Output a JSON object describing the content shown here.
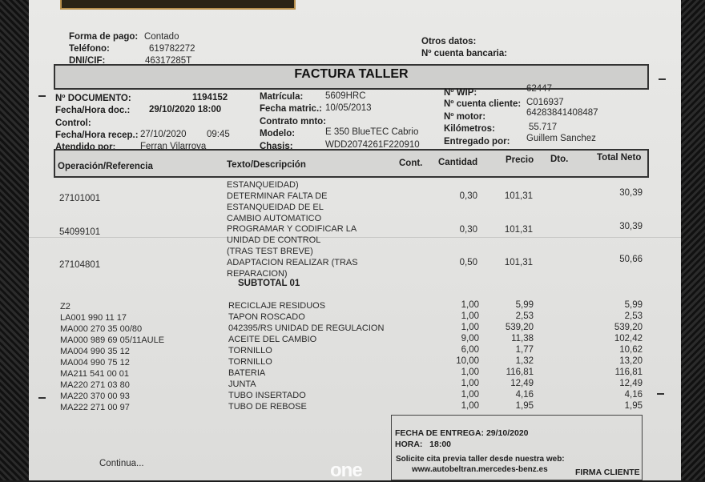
{
  "client": {
    "forma_pago_label": "Forma de pago:",
    "forma_pago": "Contado",
    "telefono_label": "Teléfono:",
    "telefono": "619782272",
    "dni_label": "DNI/CIF:",
    "dni": "46317285T",
    "otros_label": "Otros datos:",
    "cuenta_bancaria_label": "Nº cuenta bancaria:"
  },
  "title": "FACTURA TALLER",
  "doc": {
    "documento_label": "Nº DOCUMENTO:",
    "documento": "1194152",
    "fecha_doc_label": "Fecha/Hora doc.:",
    "fecha_doc": "29/10/2020 18:00",
    "control_label": "Control:",
    "recep_label": "Fecha/Hora recep.:",
    "recep_fecha": "27/10/2020",
    "recep_hora": "09:45",
    "atendido_label": "Atendido por:",
    "atendido": "Ferran Vilarroya"
  },
  "vehicle": {
    "matricula_label": "Matrícula:",
    "matricula": "5609HRC",
    "fecha_matric_label": "Fecha matric.:",
    "fecha_matric": "10/05/2013",
    "contrato_label": "Contrato mnto:",
    "modelo_label": "Modelo:",
    "modelo": "E 350 BlueTEC Cabrio",
    "chasis_label": "Chasis:",
    "chasis": "WDD2074261F220910"
  },
  "work": {
    "wip_label": "Nº WIP:",
    "wip": "62447",
    "cuenta_label": "Nº cuenta cliente:",
    "cuenta": "C016937",
    "motor_label": "Nº motor:",
    "motor": "64283841408487",
    "km_label": "Kilómetros:",
    "km": "55.717",
    "entregado_label": "Entregado por:",
    "entregado": "Guillem Sanchez"
  },
  "columns": {
    "operacion": "Operación/Referencia",
    "texto": "Texto/Descripción",
    "cont": "Cont.",
    "cantidad": "Cantidad",
    "precio": "Precio",
    "dto": "Dto.",
    "total": "Total Neto"
  },
  "operations": [
    {
      "ref": "27101001",
      "desc": [
        "ESTANQUEIDAD)",
        "DETERMINAR FALTA DE",
        "ESTANQUEIDAD DE EL"
      ],
      "cantidad": "0,30",
      "precio": "101,31",
      "total": "30,39"
    },
    {
      "ref": "54099101",
      "desc": [
        "CAMBIO AUTOMATICO",
        "PROGRAMAR Y CODIFICAR LA",
        "UNIDAD DE CONTROL"
      ],
      "cantidad": "0,30",
      "precio": "101,31",
      "total": "30,39"
    },
    {
      "ref": "27104801",
      "desc": [
        "(TRAS TEST BREVE)",
        "ADAPTACION REALIZAR (TRAS",
        "REPARACION)"
      ],
      "cantidad": "0,50",
      "precio": "101,31",
      "total": "50,66"
    }
  ],
  "subtotal_label": "SUBTOTAL 01",
  "parts": [
    {
      "ref": "Z2",
      "desc": "RECICLAJE RESIDUOS",
      "cantidad": "1,00",
      "precio": "5,99",
      "total": "5,99"
    },
    {
      "ref": "LA001 990 11 17",
      "desc": "TAPON ROSCADO",
      "cantidad": "1,00",
      "precio": "2,53",
      "total": "2,53"
    },
    {
      "ref": "MA000 270 35 00/80",
      "desc": "042395/RS UNIDAD DE REGULACION",
      "cantidad": "1,00",
      "precio": "539,20",
      "total": "539,20"
    },
    {
      "ref": "MA000 989 69 05/11AULE",
      "desc": "ACEITE DEL CAMBIO",
      "cantidad": "9,00",
      "precio": "11,38",
      "total": "102,42"
    },
    {
      "ref": "MA004 990 35 12",
      "desc": "TORNILLO",
      "cantidad": "6,00",
      "precio": "1,77",
      "total": "10,62"
    },
    {
      "ref": "MA004 990 75 12",
      "desc": "TORNILLO",
      "cantidad": "10,00",
      "precio": "1,32",
      "total": "13,20"
    },
    {
      "ref": "MA211 541 00 01",
      "desc": "BATERIA",
      "cantidad": "1,00",
      "precio": "116,81",
      "total": "116,81"
    },
    {
      "ref": "MA220 271 03 80",
      "desc": "JUNTA",
      "cantidad": "1,00",
      "precio": "12,49",
      "total": "12,49"
    },
    {
      "ref": "MA220 370 00 93",
      "desc": "TUBO INSERTADO",
      "cantidad": "1,00",
      "precio": "4,16",
      "total": "4,16"
    },
    {
      "ref": "MA222 271 00 97",
      "desc": "TUBO DE REBOSE",
      "cantidad": "1,00",
      "precio": "1,95",
      "total": "1,95"
    }
  ],
  "footer": {
    "continua": "Continua...",
    "fecha_entrega": "FECHA DE ENTREGA: 29/10/2020",
    "hora": "HORA:   18:00",
    "cita": "Solicite cita previa taller desde nuestra web:",
    "web": "www.autobeltran.mercedes-benz.es",
    "firma": "FIRMA CLIENTE"
  },
  "watermark": "one"
}
